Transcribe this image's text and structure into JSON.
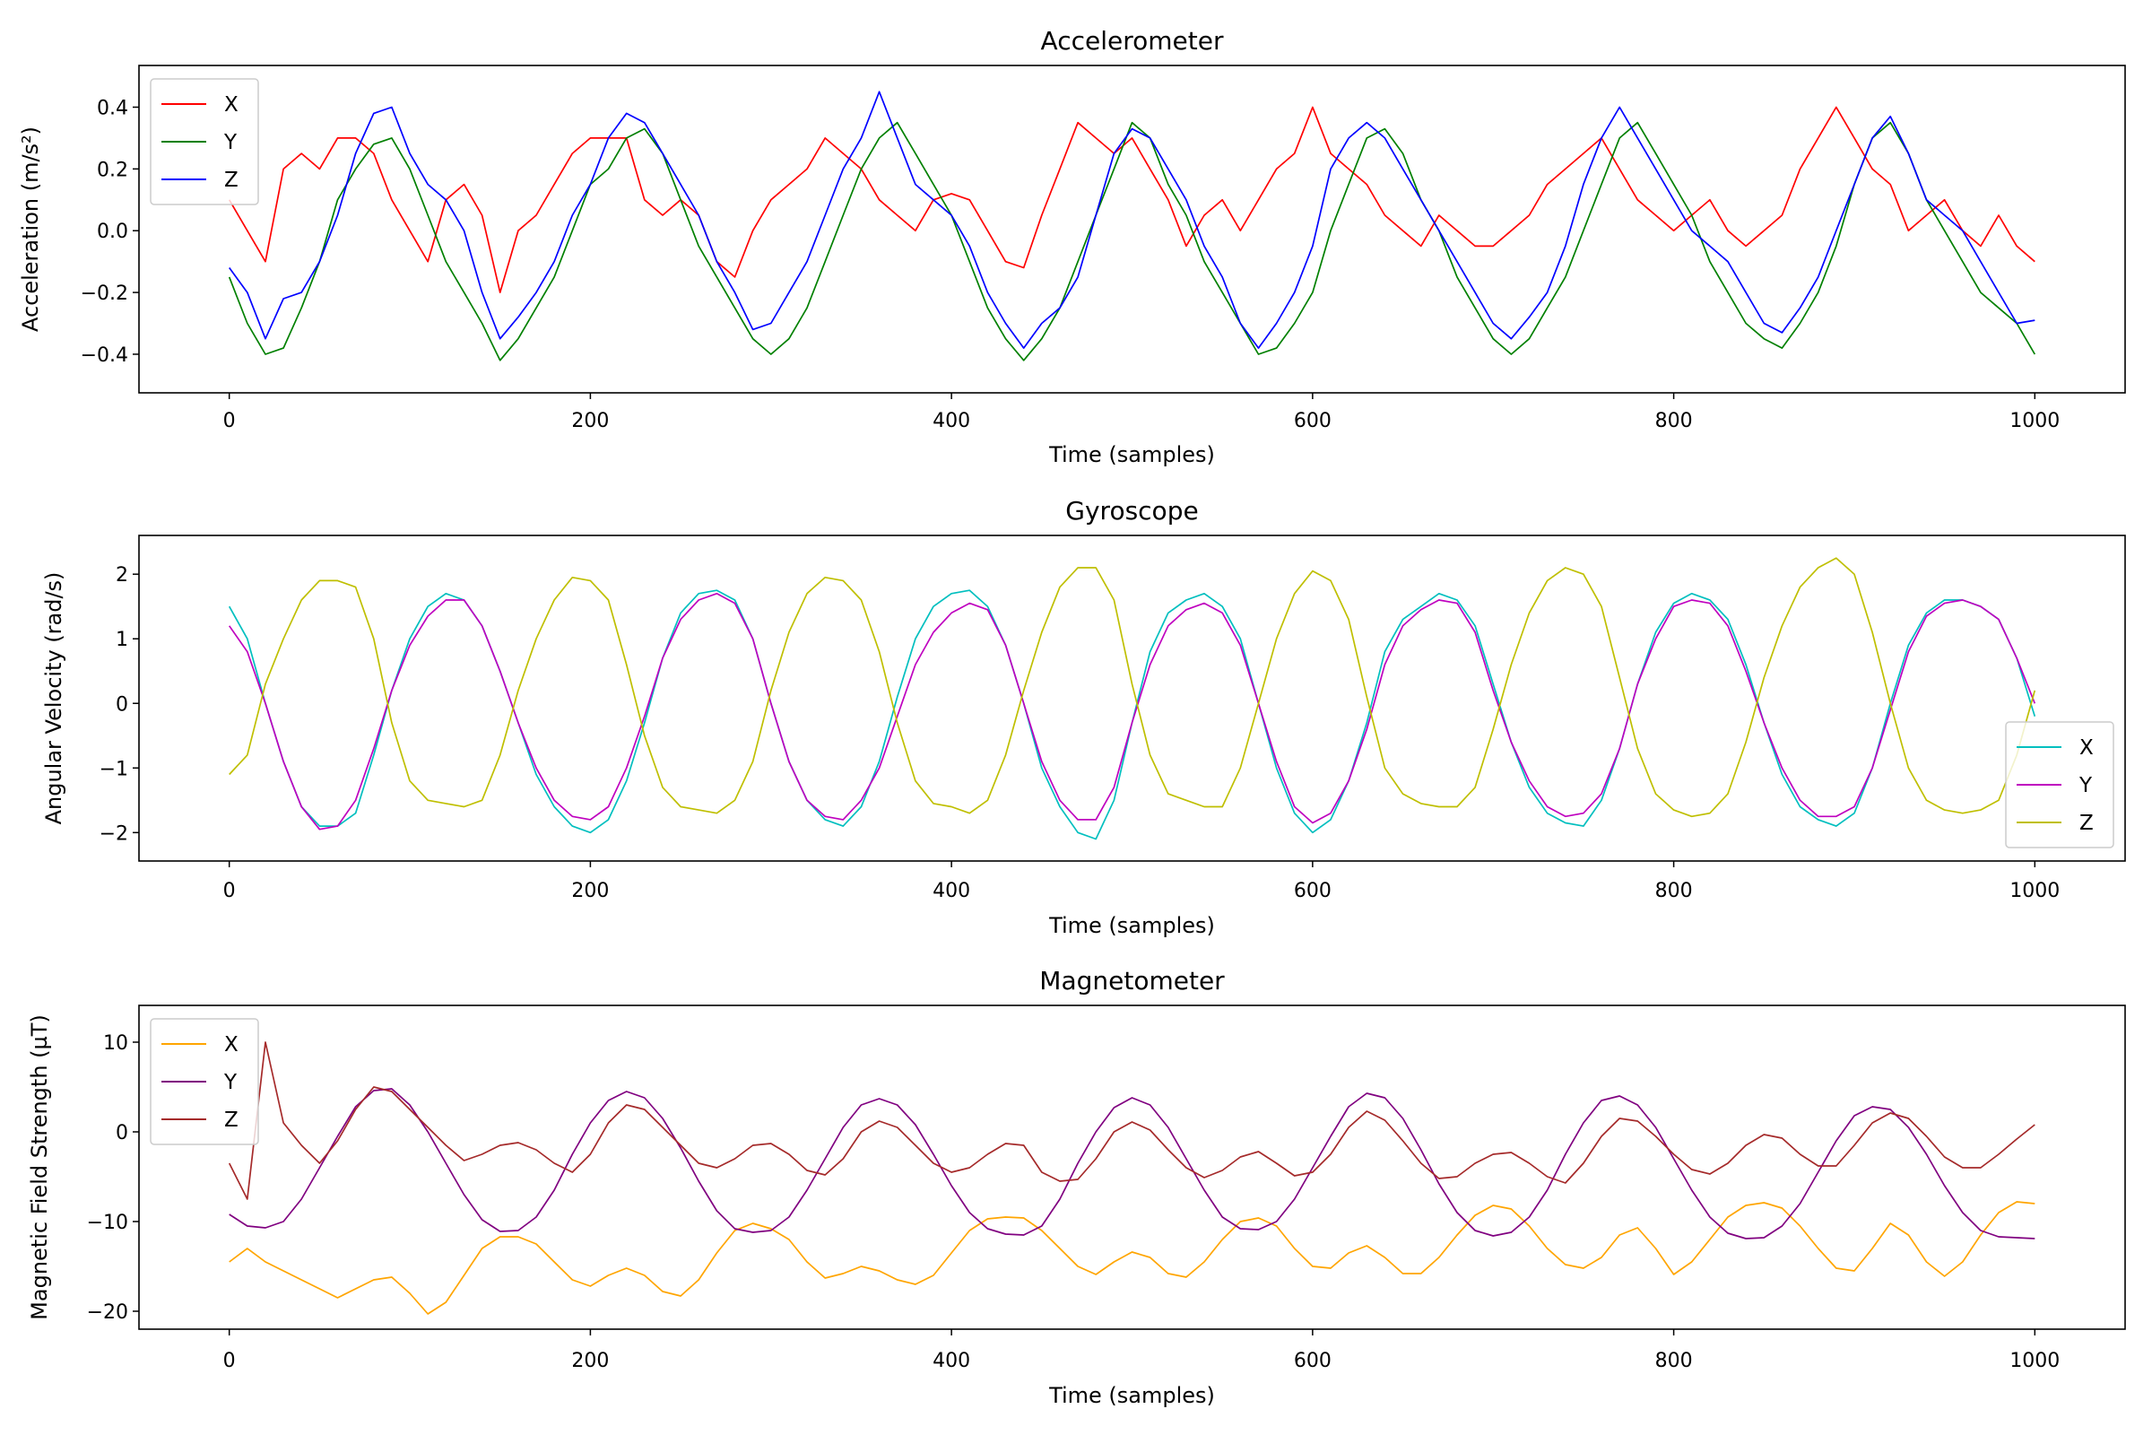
{
  "chart_data": [
    {
      "type": "line",
      "title": "Accelerometer",
      "xlabel": "Time (samples)",
      "ylabel": "Acceleration (m/s²)",
      "xlim": [
        -50,
        1050
      ],
      "ylim": [
        -0.525,
        0.535
      ],
      "xticks": [
        0,
        200,
        400,
        600,
        800,
        1000
      ],
      "xtick_labels": [
        "0",
        "200",
        "400",
        "600",
        "800",
        "1000"
      ],
      "yticks": [
        -0.4,
        -0.2,
        0.0,
        0.2,
        0.4
      ],
      "ytick_labels": [
        "−0.4",
        "−0.2",
        "0.0",
        "0.2",
        "0.4"
      ],
      "grid": false,
      "legend_position": "upper-left",
      "x_start": 0,
      "x_step": 10,
      "series": [
        {
          "name": "X",
          "color": "#ff0000",
          "values": [
            0.1,
            0.0,
            -0.1,
            0.2,
            0.25,
            0.2,
            0.3,
            0.3,
            0.25,
            0.1,
            0.0,
            -0.1,
            0.1,
            0.15,
            0.05,
            -0.2,
            0.0,
            0.05,
            0.15,
            0.25,
            0.3,
            0.3,
            0.3,
            0.1,
            0.05,
            0.1,
            0.05,
            -0.1,
            -0.15,
            0.0,
            0.1,
            0.15,
            0.2,
            0.3,
            0.25,
            0.2,
            0.1,
            0.05,
            0.0,
            0.1,
            0.12,
            0.1,
            0.0,
            -0.1,
            -0.12,
            0.05,
            0.2,
            0.35,
            0.3,
            0.25,
            0.3,
            0.2,
            0.1,
            -0.05,
            0.05,
            0.1,
            0.0,
            0.1,
            0.2,
            0.25,
            0.4,
            0.25,
            0.2,
            0.15,
            0.05,
            0.0,
            -0.05,
            0.05,
            0.0,
            -0.05,
            -0.05,
            0.0,
            0.05,
            0.15,
            0.2,
            0.25,
            0.3,
            0.2,
            0.1,
            0.05,
            0.0,
            0.05,
            0.1,
            0.0,
            -0.05,
            0.0,
            0.05,
            0.2,
            0.3,
            0.4,
            0.3,
            0.2,
            0.15,
            0.0,
            0.05,
            0.1,
            0.0,
            -0.05,
            0.05,
            -0.05,
            -0.1
          ]
        },
        {
          "name": "Y",
          "color": "#008000",
          "values": [
            -0.15,
            -0.3,
            -0.4,
            -0.38,
            -0.25,
            -0.1,
            0.1,
            0.2,
            0.28,
            0.3,
            0.2,
            0.05,
            -0.1,
            -0.2,
            -0.3,
            -0.42,
            -0.35,
            -0.25,
            -0.15,
            0.0,
            0.15,
            0.2,
            0.3,
            0.33,
            0.25,
            0.1,
            -0.05,
            -0.15,
            -0.25,
            -0.35,
            -0.4,
            -0.35,
            -0.25,
            -0.1,
            0.05,
            0.2,
            0.3,
            0.35,
            0.25,
            0.15,
            0.05,
            -0.1,
            -0.25,
            -0.35,
            -0.42,
            -0.35,
            -0.25,
            -0.1,
            0.05,
            0.2,
            0.35,
            0.3,
            0.15,
            0.05,
            -0.1,
            -0.2,
            -0.3,
            -0.4,
            -0.38,
            -0.3,
            -0.2,
            0.0,
            0.15,
            0.3,
            0.33,
            0.25,
            0.1,
            0.0,
            -0.15,
            -0.25,
            -0.35,
            -0.4,
            -0.35,
            -0.25,
            -0.15,
            0.0,
            0.15,
            0.3,
            0.35,
            0.25,
            0.15,
            0.05,
            -0.1,
            -0.2,
            -0.3,
            -0.35,
            -0.38,
            -0.3,
            -0.2,
            -0.05,
            0.15,
            0.3,
            0.35,
            0.25,
            0.1,
            0.0,
            -0.1,
            -0.2,
            -0.25,
            -0.3,
            -0.4
          ]
        },
        {
          "name": "Z",
          "color": "#0000ff",
          "values": [
            -0.12,
            -0.2,
            -0.35,
            -0.22,
            -0.2,
            -0.1,
            0.05,
            0.25,
            0.38,
            0.4,
            0.25,
            0.15,
            0.1,
            0.0,
            -0.2,
            -0.35,
            -0.28,
            -0.2,
            -0.1,
            0.05,
            0.15,
            0.3,
            0.38,
            0.35,
            0.25,
            0.15,
            0.05,
            -0.1,
            -0.2,
            -0.32,
            -0.3,
            -0.2,
            -0.1,
            0.05,
            0.2,
            0.3,
            0.45,
            0.3,
            0.15,
            0.1,
            0.05,
            -0.05,
            -0.2,
            -0.3,
            -0.38,
            -0.3,
            -0.25,
            -0.15,
            0.05,
            0.25,
            0.33,
            0.3,
            0.2,
            0.1,
            -0.05,
            -0.15,
            -0.3,
            -0.38,
            -0.3,
            -0.2,
            -0.05,
            0.2,
            0.3,
            0.35,
            0.3,
            0.2,
            0.1,
            0.0,
            -0.1,
            -0.2,
            -0.3,
            -0.35,
            -0.28,
            -0.2,
            -0.05,
            0.15,
            0.3,
            0.4,
            0.3,
            0.2,
            0.1,
            0.0,
            -0.05,
            -0.1,
            -0.2,
            -0.3,
            -0.33,
            -0.25,
            -0.15,
            0.0,
            0.15,
            0.3,
            0.37,
            0.25,
            0.1,
            0.05,
            0.0,
            -0.1,
            -0.2,
            -0.3,
            -0.29
          ]
        }
      ]
    },
    {
      "type": "line",
      "title": "Gyroscope",
      "xlabel": "Time (samples)",
      "ylabel": "Angular Velocity (rad/s)",
      "xlim": [
        -50,
        1050
      ],
      "ylim": [
        -2.44,
        2.6
      ],
      "xticks": [
        0,
        200,
        400,
        600,
        800,
        1000
      ],
      "xtick_labels": [
        "0",
        "200",
        "400",
        "600",
        "800",
        "1000"
      ],
      "yticks": [
        -2,
        -1,
        0,
        1,
        2
      ],
      "ytick_labels": [
        "−2",
        "−1",
        "0",
        "1",
        "2"
      ],
      "grid": false,
      "legend_position": "lower-right",
      "x_start": 0,
      "x_step": 10,
      "series": [
        {
          "name": "X",
          "color": "#00bfbf",
          "values": [
            1.5,
            1.0,
            0.0,
            -0.9,
            -1.6,
            -1.9,
            -1.9,
            -1.7,
            -0.8,
            0.2,
            1.0,
            1.5,
            1.7,
            1.6,
            1.2,
            0.5,
            -0.3,
            -1.1,
            -1.6,
            -1.9,
            -2.0,
            -1.8,
            -1.2,
            -0.3,
            0.7,
            1.4,
            1.7,
            1.75,
            1.6,
            1.0,
            0.0,
            -0.9,
            -1.5,
            -1.8,
            -1.9,
            -1.6,
            -0.9,
            0.1,
            1.0,
            1.5,
            1.7,
            1.75,
            1.5,
            0.9,
            0.0,
            -1.0,
            -1.6,
            -2.0,
            -2.1,
            -1.5,
            -0.3,
            0.8,
            1.4,
            1.6,
            1.7,
            1.5,
            1.0,
            0.0,
            -1.0,
            -1.7,
            -2.0,
            -1.8,
            -1.2,
            -0.3,
            0.8,
            1.3,
            1.5,
            1.7,
            1.6,
            1.2,
            0.3,
            -0.6,
            -1.3,
            -1.7,
            -1.85,
            -1.9,
            -1.5,
            -0.7,
            0.3,
            1.1,
            1.55,
            1.7,
            1.6,
            1.3,
            0.6,
            -0.3,
            -1.1,
            -1.6,
            -1.8,
            -1.9,
            -1.7,
            -1.0,
            0.0,
            0.9,
            1.4,
            1.6,
            1.6,
            1.5,
            1.3,
            0.7,
            -0.2
          ]
        },
        {
          "name": "Y",
          "color": "#bf00bf",
          "values": [
            1.2,
            0.8,
            0.0,
            -0.9,
            -1.6,
            -1.95,
            -1.9,
            -1.5,
            -0.7,
            0.2,
            0.9,
            1.35,
            1.6,
            1.6,
            1.2,
            0.5,
            -0.3,
            -1.0,
            -1.5,
            -1.75,
            -1.8,
            -1.6,
            -1.0,
            -0.2,
            0.7,
            1.3,
            1.6,
            1.7,
            1.55,
            1.0,
            0.0,
            -0.9,
            -1.5,
            -1.75,
            -1.8,
            -1.5,
            -1.0,
            -0.2,
            0.6,
            1.1,
            1.4,
            1.55,
            1.45,
            0.9,
            0.0,
            -0.9,
            -1.5,
            -1.8,
            -1.8,
            -1.3,
            -0.3,
            0.6,
            1.2,
            1.45,
            1.55,
            1.4,
            0.9,
            0.0,
            -0.9,
            -1.6,
            -1.85,
            -1.7,
            -1.2,
            -0.4,
            0.6,
            1.2,
            1.45,
            1.6,
            1.55,
            1.1,
            0.2,
            -0.6,
            -1.2,
            -1.6,
            -1.75,
            -1.7,
            -1.4,
            -0.7,
            0.3,
            1.0,
            1.5,
            1.6,
            1.55,
            1.2,
            0.5,
            -0.3,
            -1.0,
            -1.5,
            -1.75,
            -1.75,
            -1.6,
            -1.0,
            -0.1,
            0.8,
            1.35,
            1.55,
            1.6,
            1.5,
            1.3,
            0.7,
            0.0
          ]
        },
        {
          "name": "Z",
          "color": "#bfbf00",
          "values": [
            -1.1,
            -0.8,
            0.3,
            1.0,
            1.6,
            1.9,
            1.9,
            1.8,
            1.0,
            -0.3,
            -1.2,
            -1.5,
            -1.55,
            -1.6,
            -1.5,
            -0.8,
            0.2,
            1.0,
            1.6,
            1.95,
            1.9,
            1.6,
            0.6,
            -0.5,
            -1.3,
            -1.6,
            -1.65,
            -1.7,
            -1.5,
            -0.9,
            0.2,
            1.1,
            1.7,
            1.95,
            1.9,
            1.6,
            0.8,
            -0.3,
            -1.2,
            -1.55,
            -1.6,
            -1.7,
            -1.5,
            -0.8,
            0.2,
            1.1,
            1.8,
            2.1,
            2.1,
            1.6,
            0.3,
            -0.8,
            -1.4,
            -1.5,
            -1.6,
            -1.6,
            -1.0,
            0.0,
            1.0,
            1.7,
            2.05,
            1.9,
            1.3,
            0.1,
            -1.0,
            -1.4,
            -1.55,
            -1.6,
            -1.6,
            -1.3,
            -0.4,
            0.6,
            1.4,
            1.9,
            2.1,
            2.0,
            1.5,
            0.4,
            -0.7,
            -1.4,
            -1.65,
            -1.75,
            -1.7,
            -1.4,
            -0.6,
            0.4,
            1.2,
            1.8,
            2.1,
            2.25,
            2.0,
            1.1,
            0.0,
            -1.0,
            -1.5,
            -1.65,
            -1.7,
            -1.65,
            -1.5,
            -0.8,
            0.2
          ]
        }
      ]
    },
    {
      "type": "line",
      "title": "Magnetometer",
      "xlabel": "Time (samples)",
      "ylabel": "Magnetic Field Strength (µT)",
      "xlim": [
        -50,
        1050
      ],
      "ylim": [
        -22,
        14.1
      ],
      "xticks": [
        0,
        200,
        400,
        600,
        800,
        1000
      ],
      "xtick_labels": [
        "0",
        "200",
        "400",
        "600",
        "800",
        "1000"
      ],
      "yticks": [
        -20,
        -10,
        0,
        10
      ],
      "ytick_labels": [
        "−20",
        "−10",
        "0",
        "10"
      ],
      "grid": false,
      "legend_position": "upper-left",
      "x_start": 0,
      "x_step": 10,
      "series": [
        {
          "name": "X",
          "color": "#ffa500",
          "values": [
            -14.5,
            -13,
            -14.5,
            -15.5,
            -16.5,
            -17.5,
            -18.5,
            -17.5,
            -16.5,
            -16.2,
            -18,
            -20.3,
            -19,
            -16,
            -13,
            -11.7,
            -11.7,
            -12.5,
            -14.5,
            -16.5,
            -17.2,
            -16,
            -15.2,
            -16,
            -17.8,
            -18.3,
            -16.5,
            -13.5,
            -11,
            -10.2,
            -10.8,
            -12,
            -14.5,
            -16.3,
            -15.8,
            -15,
            -15.5,
            -16.5,
            -17,
            -16,
            -13.5,
            -11,
            -9.7,
            -9.5,
            -9.6,
            -11,
            -13,
            -15,
            -15.9,
            -14.5,
            -13.4,
            -14,
            -15.8,
            -16.2,
            -14.5,
            -12,
            -10,
            -9.6,
            -10.5,
            -13,
            -15,
            -15.2,
            -13.5,
            -12.7,
            -14,
            -15.8,
            -15.8,
            -14,
            -11.5,
            -9.3,
            -8.2,
            -8.6,
            -10.5,
            -13,
            -14.8,
            -15.2,
            -14,
            -11.5,
            -10.7,
            -13,
            -15.9,
            -14.5,
            -12,
            -9.5,
            -8.2,
            -7.9,
            -8.5,
            -10.5,
            -13,
            -15.2,
            -15.5,
            -13,
            -10.2,
            -11.5,
            -14.5,
            -16.1,
            -14.5,
            -11.5,
            -9,
            -7.8,
            -8
          ]
        },
        {
          "name": "Y",
          "color": "#800080",
          "values": [
            -9.2,
            -10.5,
            -10.7,
            -10,
            -7.5,
            -4,
            -0.5,
            2.8,
            4.6,
            4.8,
            3,
            0,
            -3.5,
            -7,
            -9.8,
            -11.1,
            -11,
            -9.5,
            -6.5,
            -2.5,
            1,
            3.5,
            4.5,
            3.8,
            1.5,
            -1.8,
            -5.5,
            -8.8,
            -10.8,
            -11.2,
            -11,
            -9.5,
            -6.5,
            -3,
            0.5,
            3,
            3.7,
            3,
            0.8,
            -2.5,
            -6,
            -9,
            -10.8,
            -11.4,
            -11.5,
            -10.5,
            -7.5,
            -3.5,
            0,
            2.7,
            3.8,
            3,
            0.5,
            -3,
            -6.5,
            -9.5,
            -10.8,
            -10.9,
            -10,
            -7.5,
            -4,
            -0.5,
            2.8,
            4.3,
            3.8,
            1.5,
            -2,
            -5.8,
            -9,
            -11,
            -11.6,
            -11.2,
            -9.5,
            -6.5,
            -2.5,
            1,
            3.5,
            4,
            3,
            0.5,
            -3,
            -6.5,
            -9.5,
            -11.3,
            -11.9,
            -11.8,
            -10.5,
            -8,
            -4.5,
            -1,
            1.8,
            2.8,
            2.5,
            0.5,
            -2.5,
            -6,
            -9,
            -11,
            -11.7,
            -11.8,
            -11.9
          ]
        },
        {
          "name": "Z",
          "color": "#a52a2a",
          "values": [
            -3.5,
            -7.5,
            10,
            1,
            -1.5,
            -3.5,
            -1,
            2.5,
            5,
            4.5,
            2.5,
            0.5,
            -1.5,
            -3.2,
            -2.5,
            -1.5,
            -1.2,
            -2,
            -3.5,
            -4.5,
            -2.5,
            1,
            3,
            2.5,
            0.5,
            -1.5,
            -3.5,
            -4,
            -3,
            -1.5,
            -1.3,
            -2.5,
            -4.3,
            -4.8,
            -3,
            0,
            1.2,
            0.5,
            -1.5,
            -3.5,
            -4.5,
            -4,
            -2.5,
            -1.3,
            -1.5,
            -4.5,
            -5.5,
            -5.3,
            -3,
            0,
            1.1,
            0.2,
            -2,
            -4,
            -5.1,
            -4.3,
            -2.8,
            -2.2,
            -3.5,
            -4.9,
            -4.5,
            -2.5,
            0.5,
            2.3,
            1.3,
            -1,
            -3.5,
            -5.2,
            -5,
            -3.5,
            -2.5,
            -2.3,
            -3.5,
            -5,
            -5.7,
            -3.5,
            -0.5,
            1.5,
            1.2,
            -0.5,
            -2.5,
            -4.2,
            -4.7,
            -3.5,
            -1.5,
            -0.3,
            -0.7,
            -2.5,
            -3.8,
            -3.8,
            -1.5,
            1,
            2.1,
            1.5,
            -0.5,
            -2.8,
            -4,
            -4,
            -2.5,
            -0.8,
            0.8
          ]
        }
      ]
    }
  ]
}
